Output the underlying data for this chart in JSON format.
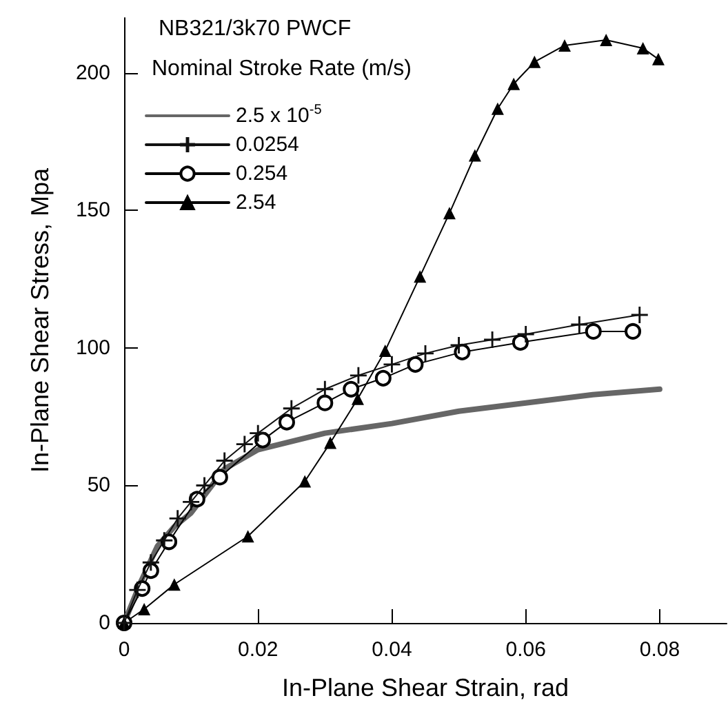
{
  "chart_data": {
    "type": "line",
    "title": "NB321/3k70 PWCF",
    "legend_title": "Nominal Stroke Rate (m/s)",
    "xlabel": "In-Plane Shear Strain, rad",
    "ylabel": "In-Plane Shear Stress, Mpa",
    "xlim": [
      0,
      0.09
    ],
    "ylim": [
      0,
      220
    ],
    "xticks": [
      0,
      0.02,
      0.04,
      0.06,
      0.08
    ],
    "yticks": [
      0,
      50,
      100,
      150,
      200
    ],
    "grid": false,
    "legend": "top left",
    "line_style": "solid",
    "series": [
      {
        "name": "2.5 x 10$^{-5}$",
        "color": "#666666",
        "marker": "none",
        "x": [
          0,
          0.0025,
          0.005,
          0.0075,
          0.01,
          0.015,
          0.02,
          0.03,
          0.04,
          0.05,
          0.06,
          0.07,
          0.08
        ],
        "values": [
          0,
          15,
          28,
          35,
          40,
          56,
          63,
          69,
          72.5,
          77,
          80,
          83,
          85
        ]
      },
      {
        "name": "0.0254",
        "color": "#111111",
        "marker": "cross",
        "x": [
          0,
          0.002,
          0.004,
          0.006,
          0.008,
          0.01,
          0.012,
          0.015,
          0.018,
          0.02,
          0.025,
          0.03,
          0.035,
          0.04,
          0.045,
          0.05,
          0.055,
          0.06,
          0.068,
          0.077
        ],
        "values": [
          0,
          12,
          22,
          30,
          38,
          44,
          50,
          59,
          65,
          69,
          78,
          85,
          90,
          94,
          98,
          101,
          103,
          105,
          108.5,
          112
        ]
      },
      {
        "name": "0.254",
        "color": "#000000",
        "marker": "circle",
        "x": [
          0,
          0.0027,
          0.004,
          0.0067,
          0.0109,
          0.0143,
          0.0207,
          0.0243,
          0.03,
          0.0339,
          0.0387,
          0.0435,
          0.0505,
          0.0592,
          0.0701,
          0.076
        ],
        "values": [
          0,
          12.5,
          19,
          29.5,
          45,
          53,
          66.5,
          73,
          80,
          85,
          89,
          94,
          98.5,
          102,
          106,
          106
        ]
      },
      {
        "name": "2.54",
        "color": "#000000",
        "marker": "triangle",
        "x": [
          0,
          0.003,
          0.0075,
          0.0185,
          0.027,
          0.0308,
          0.0349,
          0.039,
          0.0442,
          0.0486,
          0.0524,
          0.0558,
          0.0582,
          0.0613,
          0.0658,
          0.072,
          0.0775,
          0.0798
        ],
        "values": [
          0,
          5,
          14,
          31.5,
          51.5,
          65.5,
          81.5,
          99,
          126,
          149,
          170,
          187,
          196,
          204,
          210,
          212,
          209,
          205
        ]
      }
    ]
  }
}
